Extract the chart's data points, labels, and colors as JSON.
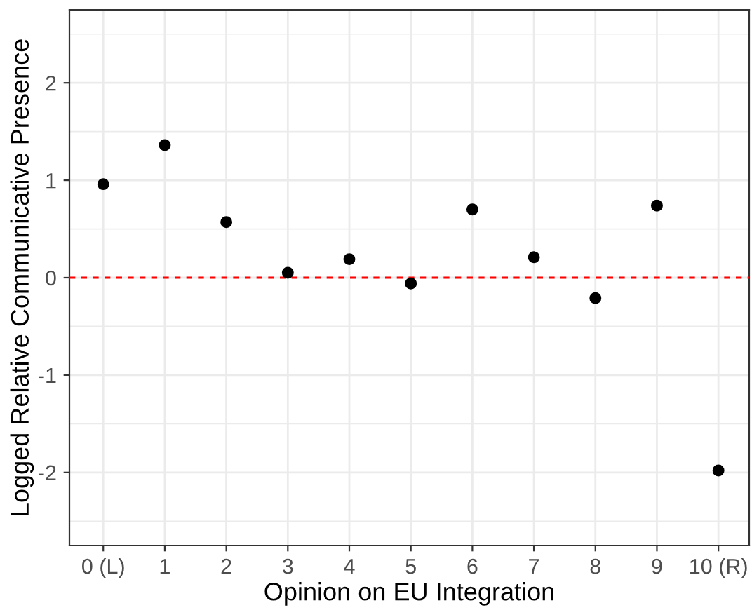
{
  "chart_data": {
    "type": "scatter",
    "xlabel": "Opinion on EU Integration",
    "ylabel": "Logged Relative Communicative Presence",
    "x": [
      0,
      1,
      2,
      3,
      4,
      5,
      6,
      7,
      8,
      9,
      10
    ],
    "series": [
      {
        "color": "#000000",
        "values": [
          0.96,
          1.36,
          0.57,
          0.05,
          0.19,
          -0.06,
          0.7,
          0.21,
          -0.21,
          0.74,
          -1.98
        ]
      }
    ],
    "xlim": [
      -0.55,
      10.5
    ],
    "xticks": [
      {
        "value": 0,
        "label": "0 (L)"
      },
      1,
      2,
      3,
      4,
      5,
      6,
      7,
      8,
      9,
      {
        "value": 10,
        "label": "10 (R)"
      }
    ],
    "ylim": [
      -2.75,
      2.75
    ],
    "yticks": [
      -2,
      -1,
      0,
      1,
      2
    ],
    "ref_lines": [
      {
        "axis": "y",
        "value": 0,
        "color": "#ff0000",
        "line_style": "dashed"
      }
    ],
    "grid": true,
    "marker": "circle",
    "legend": false
  }
}
